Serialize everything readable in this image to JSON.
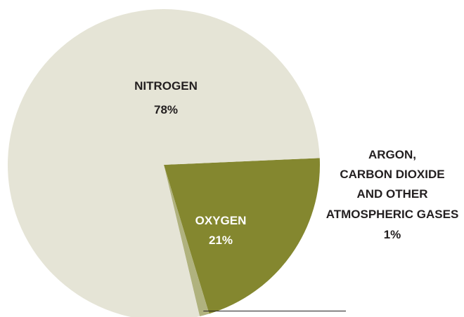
{
  "chart_data": {
    "type": "pie",
    "slices": [
      {
        "label": "OXYGEN",
        "value": 21,
        "value_label": "21%",
        "color": "#84872f",
        "text_color": "#ffffff"
      },
      {
        "label": "ARGON, CARBON DIOXIDE AND OTHER ATMOSPHERIC GASES",
        "label_lines": [
          "ARGON,",
          "CARBON DIOXIDE",
          "AND OTHER",
          "ATMOSPHERIC GASES"
        ],
        "value": 1,
        "value_label": "1%",
        "color": "#b0b27e",
        "text_color": "#231f20"
      },
      {
        "label": "NITROGEN",
        "value": 78,
        "value_label": "78%",
        "color": "#e5e4d6",
        "text_color": "#231f20"
      }
    ],
    "title": "",
    "legend": "none",
    "callout_line_color": "#231f20"
  }
}
